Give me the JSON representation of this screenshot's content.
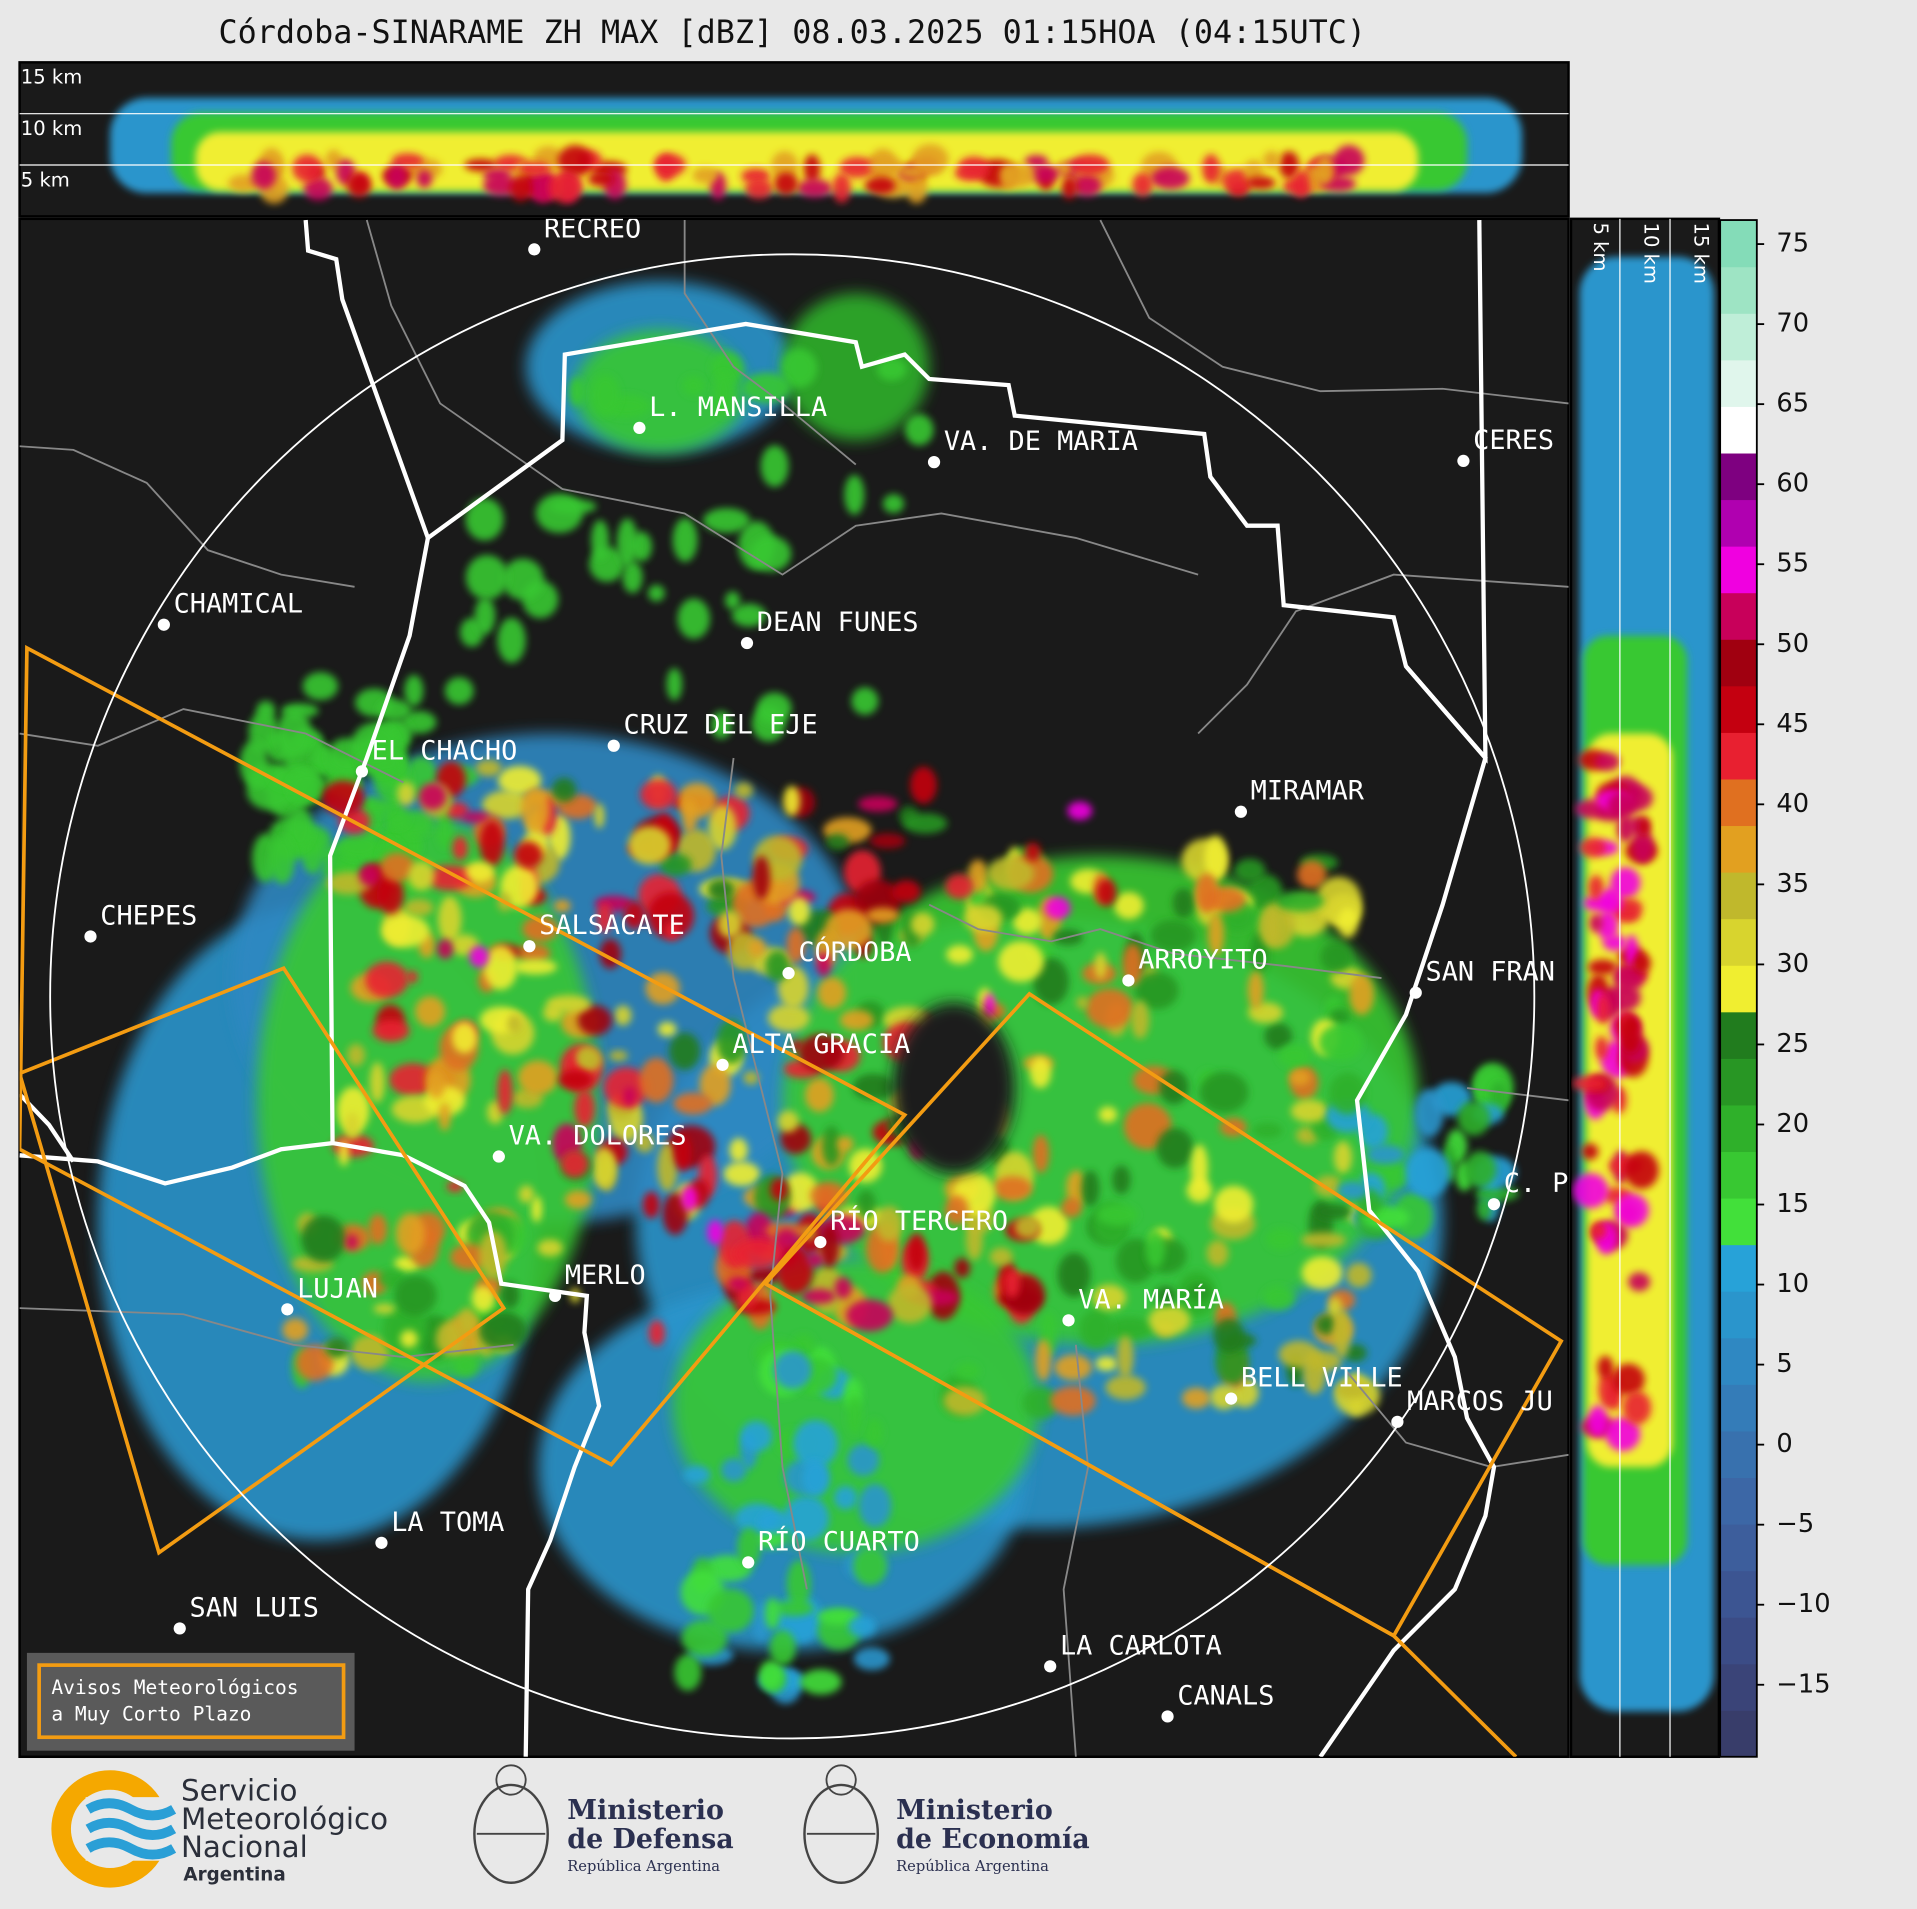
{
  "header": {
    "title": "Córdoba-SINARAME ZH MAX [dBZ] 08.03.2025 01:15HOA (04:15UTC)"
  },
  "cross_section": {
    "labels": [
      "15 km",
      "10 km",
      "5 km"
    ]
  },
  "side_section": {
    "labels": [
      "5 km",
      "10 km",
      "15 km"
    ]
  },
  "colorbar": {
    "lim": [
      -19.5,
      76.5
    ],
    "ticks": [
      75,
      70,
      65,
      60,
      55,
      50,
      45,
      40,
      35,
      30,
      25,
      20,
      15,
      10,
      5,
      0,
      {
        "value": -5,
        "label": "−5"
      },
      {
        "value": -10,
        "label": "−10"
      },
      {
        "value": -15,
        "label": "−15"
      }
    ],
    "colors": [
      "#383d6a",
      "#3a4478",
      "#3b4c86",
      "#3c5592",
      "#3d5e9c",
      "#3c67a6",
      "#3871ae",
      "#347cb8",
      "#2f88c2",
      "#2a95cc",
      "#27a2d8",
      "#42e03a",
      "#38c832",
      "#2fb02a",
      "#289624",
      "#217c1e",
      "#f0ee30",
      "#d8d42e",
      "#c0b82c",
      "#e2a020",
      "#e07020",
      "#e82030",
      "#c40010",
      "#a00010",
      "#c8005a",
      "#f000e0",
      "#b000b0",
      "#7e0080",
      "#ffffff",
      "#e0f6ec",
      "#bfeed8",
      "#9ee4c4",
      "#84dcb8"
    ]
  },
  "map": {
    "cities": [
      "RECREO",
      "L. MANSILLA",
      "VA. DE MARIA",
      "CERES",
      "CHAMICAL",
      "DEAN FUNES",
      "CRUZ DEL EJE",
      "EL CHACHO",
      "MIRAMAR",
      "CHEPES",
      "SALSACATE",
      "CÓRDOBA",
      "ARROYITO",
      "SAN FRAN",
      "ALTA GRACIA",
      "VA. DOLORES",
      "C. P",
      "RÍO TERCERO",
      "LUJAN",
      "MERLO",
      "VA. MARÍA",
      "BELL VILLE",
      "MARCOS JU",
      "LA TOMA",
      "RÍO CUARTO",
      "SAN LUIS",
      "LA CARLOTA",
      "CANALS"
    ]
  },
  "legend": {
    "lines": [
      "Avisos Meteorológicos",
      "a Muy Corto Plazo"
    ]
  },
  "logos": {
    "smn": [
      "Servicio",
      "Meteorológico",
      "Nacional",
      "Argentina"
    ],
    "defensa": [
      "Ministerio",
      "de Defensa",
      "República Argentina"
    ],
    "economia": [
      "Ministerio",
      "de Economía",
      "República Argentina"
    ]
  }
}
